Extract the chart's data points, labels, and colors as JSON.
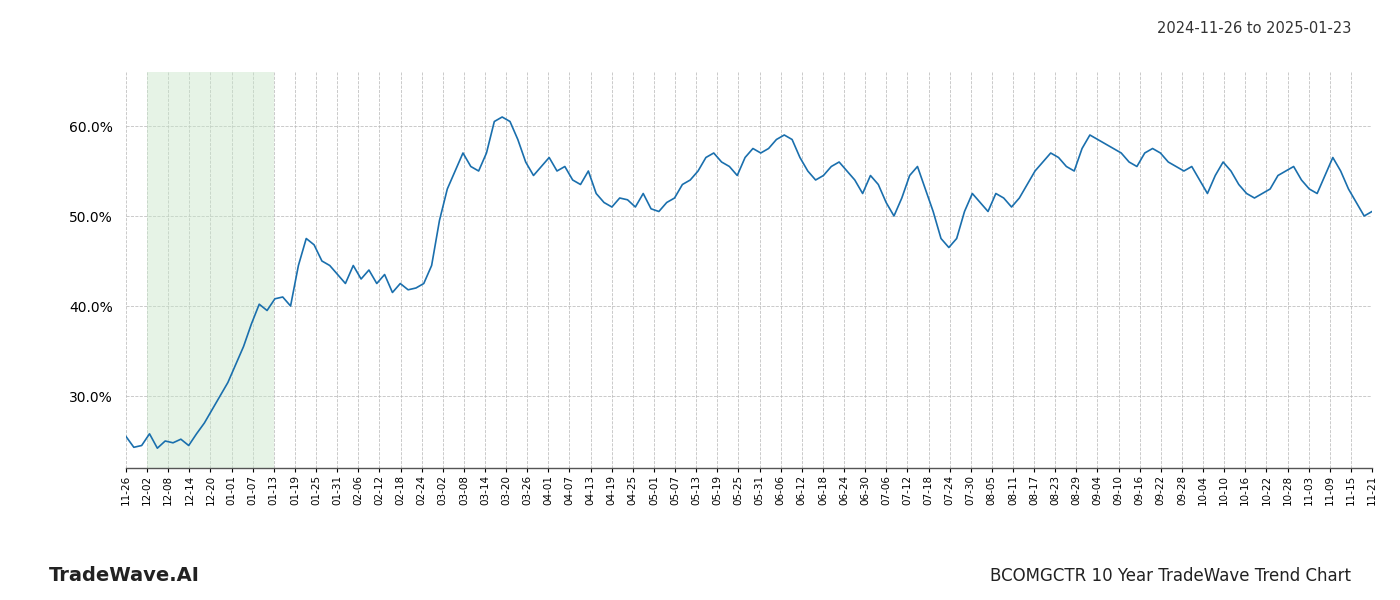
{
  "title": "BCOMGCTR 10 Year TradeWave Trend Chart",
  "watermark": "TradeWave.AI",
  "date_range": "2024-11-26 to 2025-01-23",
  "line_color": "#1a6fad",
  "line_width": 1.2,
  "background_color": "#ffffff",
  "grid_color": "#bbbbbb",
  "highlight_color": "#c8e6c9",
  "highlight_alpha": 0.45,
  "ylim": [
    22,
    66
  ],
  "yticks": [
    30.0,
    40.0,
    50.0,
    60.0
  ],
  "x_labels": [
    "11-26",
    "12-02",
    "12-08",
    "12-14",
    "12-20",
    "01-01",
    "01-07",
    "01-13",
    "01-19",
    "01-25",
    "01-31",
    "02-06",
    "02-12",
    "02-18",
    "02-24",
    "03-02",
    "03-08",
    "03-14",
    "03-20",
    "03-26",
    "04-01",
    "04-07",
    "04-13",
    "04-19",
    "04-25",
    "05-01",
    "05-07",
    "05-13",
    "05-19",
    "05-25",
    "05-31",
    "06-06",
    "06-12",
    "06-18",
    "06-24",
    "06-30",
    "07-06",
    "07-12",
    "07-18",
    "07-24",
    "07-30",
    "08-05",
    "08-11",
    "08-17",
    "08-23",
    "08-29",
    "09-04",
    "09-10",
    "09-16",
    "09-22",
    "09-28",
    "10-04",
    "10-10",
    "10-16",
    "10-22",
    "10-28",
    "11-03",
    "11-09",
    "11-15",
    "11-21"
  ],
  "highlight_start_date": "12-02",
  "highlight_end_date": "01-13",
  "values": [
    25.5,
    24.3,
    24.5,
    25.8,
    24.2,
    25.0,
    24.8,
    25.2,
    24.5,
    25.8,
    27.0,
    28.5,
    30.0,
    31.5,
    33.5,
    35.5,
    38.0,
    40.2,
    39.5,
    40.8,
    41.0,
    40.0,
    44.5,
    47.5,
    46.8,
    45.0,
    44.5,
    43.5,
    42.5,
    44.5,
    43.0,
    44.0,
    42.5,
    43.5,
    41.5,
    42.5,
    41.8,
    42.0,
    42.5,
    44.5,
    49.5,
    53.0,
    55.0,
    57.0,
    55.5,
    55.0,
    57.0,
    60.5,
    61.0,
    60.5,
    58.5,
    56.0,
    54.5,
    55.5,
    56.5,
    55.0,
    55.5,
    54.0,
    53.5,
    55.0,
    52.5,
    51.5,
    51.0,
    52.0,
    51.8,
    51.0,
    52.5,
    50.8,
    50.5,
    51.5,
    52.0,
    53.5,
    54.0,
    55.0,
    56.5,
    57.0,
    56.0,
    55.5,
    54.5,
    56.5,
    57.5,
    57.0,
    57.5,
    58.5,
    59.0,
    58.5,
    56.5,
    55.0,
    54.0,
    54.5,
    55.5,
    56.0,
    55.0,
    54.0,
    52.5,
    54.5,
    53.5,
    51.5,
    50.0,
    52.0,
    54.5,
    55.5,
    53.0,
    50.5,
    47.5,
    46.5,
    47.5,
    50.5,
    52.5,
    51.5,
    50.5,
    52.5,
    52.0,
    51.0,
    52.0,
    53.5,
    55.0,
    56.0,
    57.0,
    56.5,
    55.5,
    55.0,
    57.5,
    59.0,
    58.5,
    58.0,
    57.5,
    57.0,
    56.0,
    55.5,
    57.0,
    57.5,
    57.0,
    56.0,
    55.5,
    55.0,
    55.5,
    54.0,
    52.5,
    54.5,
    56.0,
    55.0,
    53.5,
    52.5,
    52.0,
    52.5,
    53.0,
    54.5,
    55.0,
    55.5,
    54.0,
    53.0,
    52.5,
    54.5,
    56.5,
    55.0,
    53.0,
    51.5,
    50.0,
    50.5
  ]
}
